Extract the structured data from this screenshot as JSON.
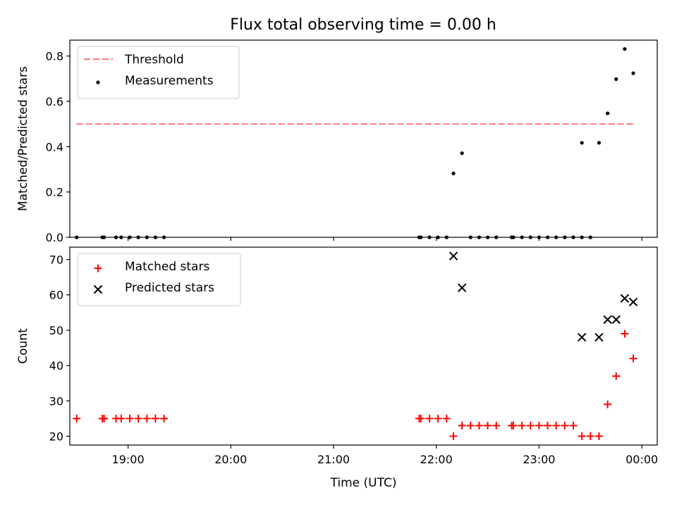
{
  "figure": {
    "title": "Flux total observing time = 0.00 h"
  },
  "chart_data": [
    {
      "type": "scatter",
      "title": "Flux total observing time = 0.00 h",
      "xlabel": "",
      "ylabel": "Matched/Predicted stars",
      "xlim": [
        "18:26",
        "00:09"
      ],
      "ylim": [
        0,
        0.87
      ],
      "yticks": [
        "0.0",
        "0.2",
        "0.4",
        "0.6",
        "0.8"
      ],
      "grid": false,
      "legend_position": "top-left",
      "threshold": {
        "name": "Threshold",
        "value": 0.5,
        "x_start": "18:30",
        "x_end": "23:55",
        "color": "#ff7777",
        "style": "dashed"
      },
      "series": [
        {
          "name": "Measurements",
          "marker": "dot",
          "color": "#000000",
          "x": [
            "18:30",
            "18:45",
            "18:46",
            "18:53",
            "18:56",
            "19:01",
            "19:06",
            "19:11",
            "19:16",
            "19:21",
            "21:50",
            "21:51",
            "21:56",
            "22:01",
            "22:06",
            "22:10",
            "22:15",
            "22:20",
            "22:25",
            "22:30",
            "22:35",
            "22:44",
            "22:45",
            "22:50",
            "22:55",
            "23:00",
            "23:05",
            "23:10",
            "23:15",
            "23:20",
            "23:25",
            "23:25",
            "23:30",
            "23:35",
            "23:40",
            "23:45",
            "23:50",
            "23:55"
          ],
          "y": [
            0,
            0,
            0,
            0,
            0,
            0,
            0,
            0,
            0,
            0,
            0,
            0,
            0,
            0,
            0,
            0.282,
            0.371,
            0,
            0,
            0,
            0,
            0,
            0,
            0,
            0,
            0,
            0,
            0,
            0,
            0,
            0,
            0.417,
            0,
            0.417,
            0.547,
            0.698,
            0.831,
            0.724
          ]
        }
      ]
    },
    {
      "type": "scatter",
      "title": "",
      "xlabel": "Time (UTC)",
      "ylabel": "Count",
      "xlim": [
        "18:26",
        "00:09"
      ],
      "xticks": [
        "19:00",
        "20:00",
        "21:00",
        "22:00",
        "23:00",
        "00:00"
      ],
      "ylim": [
        17.5,
        73.5
      ],
      "yticks": [
        "20",
        "30",
        "40",
        "50",
        "60",
        "70"
      ],
      "grid": false,
      "legend_position": "top-left",
      "series": [
        {
          "name": "Matched stars",
          "marker": "plus",
          "color": "#ff0000",
          "x": [
            "18:30",
            "18:45",
            "18:46",
            "18:53",
            "18:56",
            "19:01",
            "19:06",
            "19:11",
            "19:16",
            "19:21",
            "21:50",
            "21:51",
            "21:56",
            "22:01",
            "22:06",
            "22:10",
            "22:15",
            "22:20",
            "22:25",
            "22:30",
            "22:35",
            "22:44",
            "22:45",
            "22:50",
            "22:55",
            "23:00",
            "23:05",
            "23:10",
            "23:15",
            "23:20",
            "23:25",
            "23:30",
            "23:35",
            "23:40",
            "23:45",
            "23:50",
            "23:55"
          ],
          "y": [
            25,
            25,
            25,
            25,
            25,
            25,
            25,
            25,
            25,
            25,
            25,
            25,
            25,
            25,
            25,
            20,
            23,
            23,
            23,
            23,
            23,
            23,
            23,
            23,
            23,
            23,
            23,
            23,
            23,
            23,
            20,
            20,
            20,
            29,
            37,
            49,
            42
          ]
        },
        {
          "name": "Predicted stars",
          "marker": "x",
          "color": "#000000",
          "x": [
            "22:10",
            "22:15",
            "23:25",
            "23:35",
            "23:40",
            "23:45",
            "23:50",
            "23:55"
          ],
          "y": [
            71,
            62,
            48,
            48,
            53,
            53,
            59,
            58
          ]
        }
      ]
    }
  ]
}
